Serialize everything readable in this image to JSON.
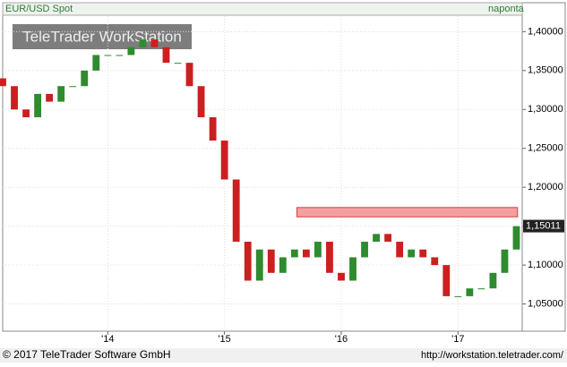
{
  "chart_data": {
    "type": "candlestick",
    "title": "EUR/USD Spot",
    "period": "naponta",
    "watermark": "TeleTrader WorkStation",
    "footer_left": "© 2017 TeleTrader Software GmbH",
    "footer_right": "http://workstation.teletrader.com/",
    "up_color": "#2e8b2e",
    "down_color": "#cc1f1f",
    "x": [
      2013.1,
      2013.2,
      2013.3,
      2013.4,
      2013.5,
      2013.6,
      2013.7,
      2013.8,
      2013.9,
      2014.0,
      2014.1,
      2014.2,
      2014.3,
      2014.4,
      2014.5,
      2014.6,
      2014.7,
      2014.8,
      2014.9,
      2015.0,
      2015.1,
      2015.2,
      2015.3,
      2015.4,
      2015.5,
      2015.6,
      2015.7,
      2015.8,
      2015.9,
      2016.0,
      2016.1,
      2016.2,
      2016.3,
      2016.4,
      2016.5,
      2016.6,
      2016.7,
      2016.8,
      2016.9,
      2017.0,
      2017.1,
      2017.2,
      2017.3,
      2017.4,
      2017.5
    ],
    "open": [
      1.34,
      1.33,
      1.3,
      1.29,
      1.32,
      1.31,
      1.33,
      1.33,
      1.35,
      1.37,
      1.37,
      1.37,
      1.38,
      1.39,
      1.38,
      1.36,
      1.36,
      1.33,
      1.29,
      1.26,
      1.21,
      1.13,
      1.08,
      1.12,
      1.09,
      1.11,
      1.12,
      1.11,
      1.13,
      1.09,
      1.08,
      1.11,
      1.13,
      1.14,
      1.13,
      1.11,
      1.12,
      1.11,
      1.1,
      1.06,
      1.06,
      1.07,
      1.07,
      1.09,
      1.12
    ],
    "close": [
      1.33,
      1.3,
      1.29,
      1.32,
      1.31,
      1.33,
      1.33,
      1.35,
      1.37,
      1.37,
      1.37,
      1.38,
      1.39,
      1.38,
      1.36,
      1.36,
      1.33,
      1.29,
      1.26,
      1.21,
      1.13,
      1.08,
      1.12,
      1.09,
      1.11,
      1.12,
      1.11,
      1.13,
      1.09,
      1.08,
      1.11,
      1.13,
      1.14,
      1.13,
      1.11,
      1.12,
      1.11,
      1.1,
      1.06,
      1.06,
      1.07,
      1.07,
      1.09,
      1.12,
      1.15
    ],
    "xlim": [
      2013.1,
      2017.55
    ],
    "xticks": [
      {
        "value": 2014,
        "label": "'14"
      },
      {
        "value": 2015,
        "label": "'15"
      },
      {
        "value": 2016,
        "label": "'16"
      },
      {
        "value": 2017,
        "label": "'17"
      }
    ],
    "ylim": [
      1.015,
      1.42
    ],
    "yticks": [
      {
        "value": 1.05,
        "label": "1,05000"
      },
      {
        "value": 1.1,
        "label": "1,10000"
      },
      {
        "value": 1.15,
        "label": "1,15000"
      },
      {
        "value": 1.2,
        "label": "1,20000"
      },
      {
        "value": 1.25,
        "label": "1,25000"
      },
      {
        "value": 1.3,
        "label": "1,30000"
      },
      {
        "value": 1.35,
        "label": "1,35000"
      },
      {
        "value": 1.4,
        "label": "1,40000"
      }
    ],
    "zone": {
      "x": [
        2015.62,
        2017.51
      ],
      "y": [
        1.162,
        1.174
      ],
      "color": "#f5a0a0"
    },
    "last_price": {
      "value": 1.15011,
      "label": "1,15011"
    },
    "grid": true
  }
}
